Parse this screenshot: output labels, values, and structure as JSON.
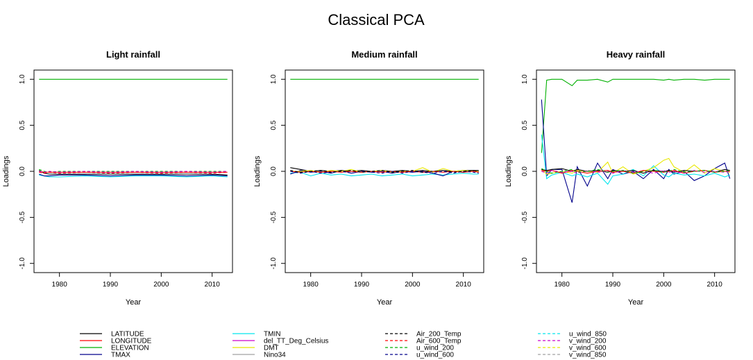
{
  "figure": {
    "title": "Classical PCA"
  },
  "colors": {
    "LATITUDE": "#000000",
    "LONGITUDE": "#ff0000",
    "ELEVATION": "#00b000",
    "TMAX": "#00008b",
    "TMIN": "#00e5ee",
    "del_TT_Deg_Celsius": "#cc00cc",
    "DMT": "#e8e800",
    "Nino34": "#a0a0a0",
    "Air_200_Temp": "#000000",
    "Air_600_Temp": "#ff0000",
    "u_wind_200": "#00b000",
    "u_wind_600": "#00008b",
    "u_wind_850": "#00e5ee",
    "v_wind_200": "#cc00cc",
    "v_wind_600": "#e8e800",
    "v_wind_850": "#a0a0a0"
  },
  "chart_data": [
    {
      "type": "line",
      "title": "Light rainfall",
      "xlabel": "Year",
      "ylabel": "Loadings",
      "xlim": [
        1975,
        2014
      ],
      "ylim": [
        -1.1,
        1.1
      ],
      "x_ticks": [
        1980,
        1990,
        2000,
        2010
      ],
      "y_ticks": [
        1.0,
        0.5,
        0.0,
        -0.5,
        -1.0
      ],
      "y_tick_labels": [
        "1.0",
        "0.5",
        "0.0",
        "-0.5",
        "-1.0"
      ],
      "x": [
        1976,
        1977,
        1978,
        1980,
        1985,
        1990,
        1995,
        2000,
        2005,
        2010,
        2013
      ],
      "series": [
        {
          "name": "ELEVATION",
          "dash": false,
          "values": [
            1.0,
            1.0,
            1.0,
            1.0,
            1.0,
            1.0,
            1.0,
            1.0,
            1.0,
            1.0,
            1.0
          ]
        },
        {
          "name": "TMIN",
          "dash": false,
          "values": [
            -0.04,
            -0.05,
            -0.06,
            -0.06,
            -0.05,
            -0.06,
            -0.05,
            -0.05,
            -0.06,
            -0.05,
            -0.06
          ]
        },
        {
          "name": "TMAX",
          "dash": false,
          "values": [
            -0.03,
            -0.05,
            -0.05,
            -0.04,
            -0.04,
            -0.05,
            -0.04,
            -0.04,
            -0.05,
            -0.04,
            -0.05
          ]
        },
        {
          "name": "LATITUDE",
          "dash": false,
          "values": [
            0.01,
            -0.02,
            -0.03,
            -0.03,
            -0.03,
            -0.03,
            -0.03,
            -0.03,
            -0.03,
            -0.03,
            -0.04
          ]
        },
        {
          "name": "LONGITUDE",
          "dash": false,
          "values": [
            0.0,
            -0.01,
            -0.01,
            -0.01,
            -0.01,
            -0.01,
            -0.01,
            -0.01,
            -0.01,
            -0.01,
            -0.01
          ]
        },
        {
          "name": "u_wind_200",
          "dash": true,
          "values": [
            0.02,
            0.0,
            -0.01,
            0.0,
            0.0,
            0.0,
            0.0,
            0.0,
            0.0,
            0.0,
            0.0
          ]
        },
        {
          "name": "v_wind_200",
          "dash": true,
          "values": [
            0.0,
            -0.01,
            0.0,
            -0.01,
            0.0,
            -0.01,
            0.0,
            -0.01,
            0.0,
            -0.01,
            0.0
          ]
        },
        {
          "name": "Air_600_Temp",
          "dash": true,
          "values": [
            -0.01,
            -0.02,
            -0.01,
            -0.02,
            -0.01,
            -0.02,
            -0.01,
            -0.02,
            -0.01,
            -0.02,
            -0.01
          ]
        }
      ]
    },
    {
      "type": "line",
      "title": "Medium rainfall",
      "xlabel": "Year",
      "ylabel": "Loadings",
      "xlim": [
        1975,
        2014
      ],
      "ylim": [
        -1.1,
        1.1
      ],
      "x_ticks": [
        1980,
        1990,
        2000,
        2010
      ],
      "y_ticks": [
        1.0,
        0.5,
        0.0,
        -0.5,
        -1.0
      ],
      "y_tick_labels": [
        "1.0",
        "0.5",
        "0.0",
        "-0.5",
        "-1.0"
      ],
      "x": [
        1976,
        1978,
        1980,
        1982,
        1984,
        1986,
        1988,
        1990,
        1992,
        1994,
        1996,
        1998,
        2000,
        2002,
        2004,
        2006,
        2008,
        2010,
        2012,
        2013
      ],
      "series": [
        {
          "name": "ELEVATION",
          "dash": false,
          "values": [
            1.0,
            1.0,
            1.0,
            1.0,
            1.0,
            1.0,
            1.0,
            1.0,
            1.0,
            1.0,
            1.0,
            1.0,
            1.0,
            1.0,
            1.0,
            1.0,
            1.0,
            1.0,
            1.0,
            1.0
          ]
        },
        {
          "name": "TMIN",
          "dash": false,
          "values": [
            -0.02,
            -0.01,
            -0.05,
            -0.02,
            -0.04,
            -0.03,
            -0.05,
            -0.04,
            -0.03,
            -0.05,
            -0.04,
            -0.03,
            -0.05,
            -0.04,
            -0.03,
            -0.04,
            -0.03,
            -0.02,
            -0.03,
            -0.03
          ]
        },
        {
          "name": "TMAX",
          "dash": false,
          "values": [
            -0.03,
            0.01,
            -0.01,
            0.0,
            -0.02,
            0.01,
            -0.02,
            0.0,
            -0.01,
            0.0,
            -0.02,
            0.0,
            -0.01,
            0.0,
            -0.02,
            -0.05,
            0.0,
            -0.01,
            0.01,
            0.0
          ]
        },
        {
          "name": "LATITUDE",
          "dash": false,
          "values": [
            0.04,
            0.02,
            0.0,
            0.01,
            0.0,
            0.01,
            0.0,
            0.01,
            0.0,
            0.01,
            0.0,
            0.01,
            0.0,
            0.01,
            0.0,
            0.01,
            0.0,
            0.01,
            0.01,
            0.01
          ]
        },
        {
          "name": "DMT",
          "dash": false,
          "values": [
            0.0,
            0.0,
            0.01,
            -0.01,
            0.01,
            0.0,
            0.02,
            -0.01,
            0.0,
            0.01,
            -0.01,
            0.0,
            0.0,
            0.04,
            -0.01,
            0.03,
            0.0,
            0.01,
            0.0,
            0.0
          ]
        },
        {
          "name": "LONGITUDE",
          "dash": false,
          "values": [
            0.0,
            -0.01,
            0.0,
            -0.01,
            0.0,
            -0.01,
            0.0,
            -0.01,
            0.0,
            -0.01,
            0.0,
            -0.01,
            0.0,
            -0.01,
            0.0,
            -0.01,
            0.0,
            -0.01,
            0.0,
            -0.01
          ]
        },
        {
          "name": "u_wind_600",
          "dash": true,
          "values": [
            0.0,
            -0.02,
            0.0,
            -0.02,
            -0.01,
            0.0,
            -0.02,
            0.0,
            -0.01,
            -0.02,
            0.0,
            -0.02,
            0.0,
            -0.01,
            -0.02,
            0.0,
            -0.02,
            0.0,
            -0.01,
            -0.02
          ]
        },
        {
          "name": "Air_200_Temp",
          "dash": true,
          "values": [
            0.01,
            -0.01,
            0.0,
            0.01,
            -0.01,
            0.0,
            0.01,
            -0.01,
            0.0,
            0.01,
            -0.01,
            0.0,
            0.01,
            -0.01,
            0.0,
            0.01,
            -0.01,
            0.0,
            0.01,
            0.0
          ]
        }
      ]
    },
    {
      "type": "line",
      "title": "Heavy rainfall",
      "xlabel": "Year",
      "ylabel": "Loadings",
      "xlim": [
        1975,
        2014
      ],
      "ylim": [
        -1.1,
        1.1
      ],
      "x_ticks": [
        1980,
        1990,
        2000,
        2010
      ],
      "y_ticks": [
        1.0,
        0.5,
        0.0,
        -0.5,
        -1.0
      ],
      "y_tick_labels": [
        "1.0",
        "0.5",
        "0.0",
        "-0.5",
        "-1.0"
      ],
      "x": [
        1976,
        1977,
        1978,
        1980,
        1982,
        1983,
        1985,
        1987,
        1989,
        1990,
        1992,
        1994,
        1996,
        1998,
        2000,
        2001,
        2002,
        2004,
        2006,
        2008,
        2010,
        2012,
        2013
      ],
      "series": [
        {
          "name": "ELEVATION",
          "dash": false,
          "values": [
            0.2,
            0.99,
            1.0,
            1.0,
            0.93,
            0.99,
            0.99,
            1.0,
            0.97,
            1.0,
            1.0,
            1.0,
            1.0,
            1.0,
            0.99,
            1.0,
            0.99,
            1.0,
            1.0,
            0.99,
            1.0,
            1.0,
            1.0
          ]
        },
        {
          "name": "TMAX",
          "dash": false,
          "values": [
            0.78,
            -0.05,
            0.02,
            0.02,
            -0.34,
            0.05,
            -0.16,
            0.09,
            -0.08,
            0.02,
            -0.03,
            0.0,
            -0.08,
            0.02,
            -0.08,
            0.02,
            -0.03,
            0.0,
            -0.1,
            -0.05,
            0.03,
            0.09,
            -0.08
          ]
        },
        {
          "name": "TMIN",
          "dash": false,
          "values": [
            0.4,
            -0.08,
            -0.04,
            -0.01,
            -0.05,
            -0.03,
            -0.06,
            -0.02,
            -0.14,
            -0.05,
            -0.03,
            0.02,
            -0.05,
            0.06,
            -0.04,
            -0.06,
            -0.02,
            -0.04,
            -0.03,
            -0.05,
            -0.02,
            -0.06,
            -0.04
          ]
        },
        {
          "name": "DMT",
          "dash": false,
          "values": [
            0.02,
            -0.03,
            -0.02,
            0.0,
            -0.02,
            0.01,
            0.0,
            -0.01,
            0.1,
            -0.02,
            0.05,
            -0.03,
            0.0,
            0.04,
            0.12,
            0.14,
            0.05,
            -0.01,
            0.07,
            -0.02,
            0.03,
            0.0,
            -0.01
          ]
        },
        {
          "name": "LATITUDE",
          "dash": false,
          "values": [
            0.02,
            0.01,
            0.02,
            0.03,
            0.0,
            0.02,
            0.0,
            0.01,
            -0.01,
            0.01,
            0.0,
            0.01,
            -0.02,
            0.01,
            0.0,
            0.01,
            -0.01,
            0.01,
            0.0,
            0.01,
            -0.01,
            0.02,
            0.01
          ]
        },
        {
          "name": "LONGITUDE",
          "dash": false,
          "values": [
            0.01,
            0.0,
            0.01,
            -0.02,
            0.01,
            0.0,
            -0.02,
            0.0,
            0.01,
            -0.01,
            0.0,
            -0.02,
            0.01,
            0.0,
            -0.01,
            0.0,
            0.01,
            -0.02,
            0.0,
            0.01,
            -0.01,
            0.0,
            0.0
          ]
        },
        {
          "name": "v_wind_200",
          "dash": true,
          "values": [
            0.0,
            -0.02,
            0.01,
            -0.01,
            0.0,
            -0.02,
            0.01,
            -0.01,
            0.0,
            -0.02,
            0.01,
            -0.01,
            0.0,
            -0.02,
            0.01,
            -0.01,
            0.0,
            -0.02,
            0.01,
            -0.01,
            0.0,
            -0.01,
            0.0
          ]
        },
        {
          "name": "u_wind_200",
          "dash": true,
          "values": [
            0.03,
            0.0,
            -0.02,
            0.0,
            0.02,
            -0.01,
            0.0,
            0.02,
            -0.01,
            0.0,
            0.01,
            -0.02,
            0.0,
            0.01,
            -0.01,
            0.0,
            0.02,
            -0.01,
            0.0,
            0.01,
            -0.01,
            0.0,
            0.01
          ]
        }
      ]
    }
  ],
  "legend": {
    "columns": [
      [
        {
          "name": "LATITUDE",
          "dash": false
        },
        {
          "name": "LONGITUDE",
          "dash": false
        },
        {
          "name": "ELEVATION",
          "dash": false
        },
        {
          "name": "TMAX",
          "dash": false
        }
      ],
      [
        {
          "name": "TMIN",
          "dash": false
        },
        {
          "name": "del_TT_Deg_Celsius",
          "dash": false
        },
        {
          "name": "DMT",
          "dash": false
        },
        {
          "name": "Nino34",
          "dash": false
        }
      ],
      [
        {
          "name": "Air_200_Temp",
          "dash": true
        },
        {
          "name": "Air_600_Temp",
          "dash": true
        },
        {
          "name": "u_wind_200",
          "dash": true
        },
        {
          "name": "u_wind_600",
          "dash": true
        }
      ],
      [
        {
          "name": "u_wind_850",
          "dash": true
        },
        {
          "name": "v_wind_200",
          "dash": true
        },
        {
          "name": "v_wind_600",
          "dash": true
        },
        {
          "name": "v_wind_850",
          "dash": true
        }
      ]
    ]
  }
}
